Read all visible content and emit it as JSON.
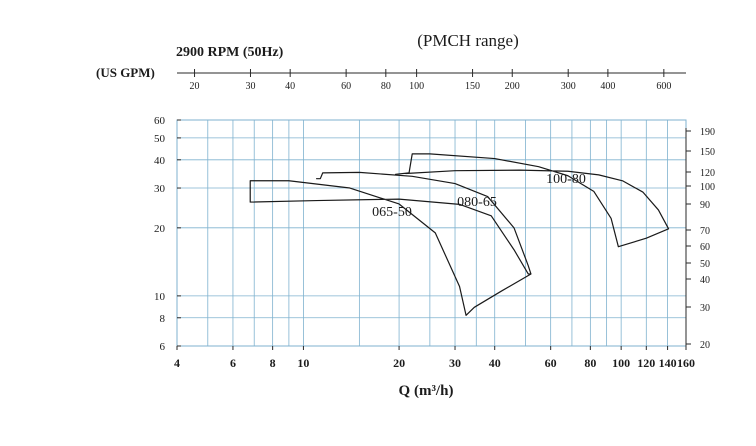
{
  "chart_data": {
    "type": "line",
    "title": "(PMCH range)",
    "subtitle": "2900 RPM (50Hz)",
    "top_axis_label": "(US GPM)",
    "xlabel": "Q (m³/h)",
    "ylabel": "",
    "x_scale": "log",
    "y_scale": "log",
    "xlim": [
      4,
      160
    ],
    "ylim": [
      6,
      60
    ],
    "grid": true,
    "x_ticks": [
      "4",
      "6",
      "8",
      "10",
      "20",
      "30",
      "40",
      "60",
      "80",
      "100",
      "120",
      "140",
      "160"
    ],
    "x_top_ticks": [
      "20",
      "30",
      "40",
      "60",
      "80",
      "100",
      "150",
      "200",
      "300",
      "400",
      "600"
    ],
    "y_left_ticks": [
      "6",
      "8",
      "10",
      "20",
      "30",
      "40",
      "50",
      "60"
    ],
    "y_right_ticks": [
      "20",
      "30",
      "40",
      "50",
      "60",
      "70",
      "90",
      "100",
      "120",
      "150",
      "190"
    ],
    "series": [
      {
        "name": "065-50",
        "envelope": [
          [
            6.8,
            26
          ],
          [
            6.8,
            32.3
          ],
          [
            9,
            32.3
          ],
          [
            14,
            30
          ],
          [
            20,
            25.5
          ],
          [
            26,
            19
          ],
          [
            31,
            11
          ],
          [
            32.5,
            8.2
          ],
          [
            34.5,
            8.9
          ],
          [
            42,
            10.5
          ],
          [
            52,
            12.5
          ],
          [
            51,
            12.5
          ],
          [
            46,
            16
          ],
          [
            39,
            22.6
          ],
          [
            31,
            25.4
          ],
          [
            20,
            26.8
          ],
          [
            11,
            26.4
          ],
          [
            6.8,
            26
          ]
        ]
      },
      {
        "name": "080-65",
        "envelope": [
          [
            11,
            33
          ],
          [
            11.3,
            33
          ],
          [
            11.5,
            35
          ],
          [
            15,
            35.2
          ],
          [
            22,
            33.8
          ],
          [
            30,
            31.4
          ],
          [
            38,
            27.5
          ],
          [
            46,
            20
          ],
          [
            51,
            13.6
          ],
          [
            52,
            12.5
          ]
        ]
      },
      {
        "name": "100-80",
        "envelope": [
          [
            19.5,
            34.5
          ],
          [
            21.5,
            35
          ],
          [
            22,
            42.5
          ],
          [
            25,
            42.5
          ],
          [
            40,
            40.5
          ],
          [
            55,
            37.3
          ],
          [
            68,
            34
          ],
          [
            82,
            29
          ],
          [
            93,
            22
          ],
          [
            98,
            16.5
          ],
          [
            120,
            18
          ],
          [
            141,
            19.8
          ],
          [
            131,
            24
          ],
          [
            117,
            28.8
          ],
          [
            101,
            32.3
          ],
          [
            85,
            34.3
          ],
          [
            68,
            35.6
          ],
          [
            48,
            36
          ],
          [
            30,
            35.8
          ],
          [
            21,
            34.8
          ]
        ]
      }
    ]
  }
}
